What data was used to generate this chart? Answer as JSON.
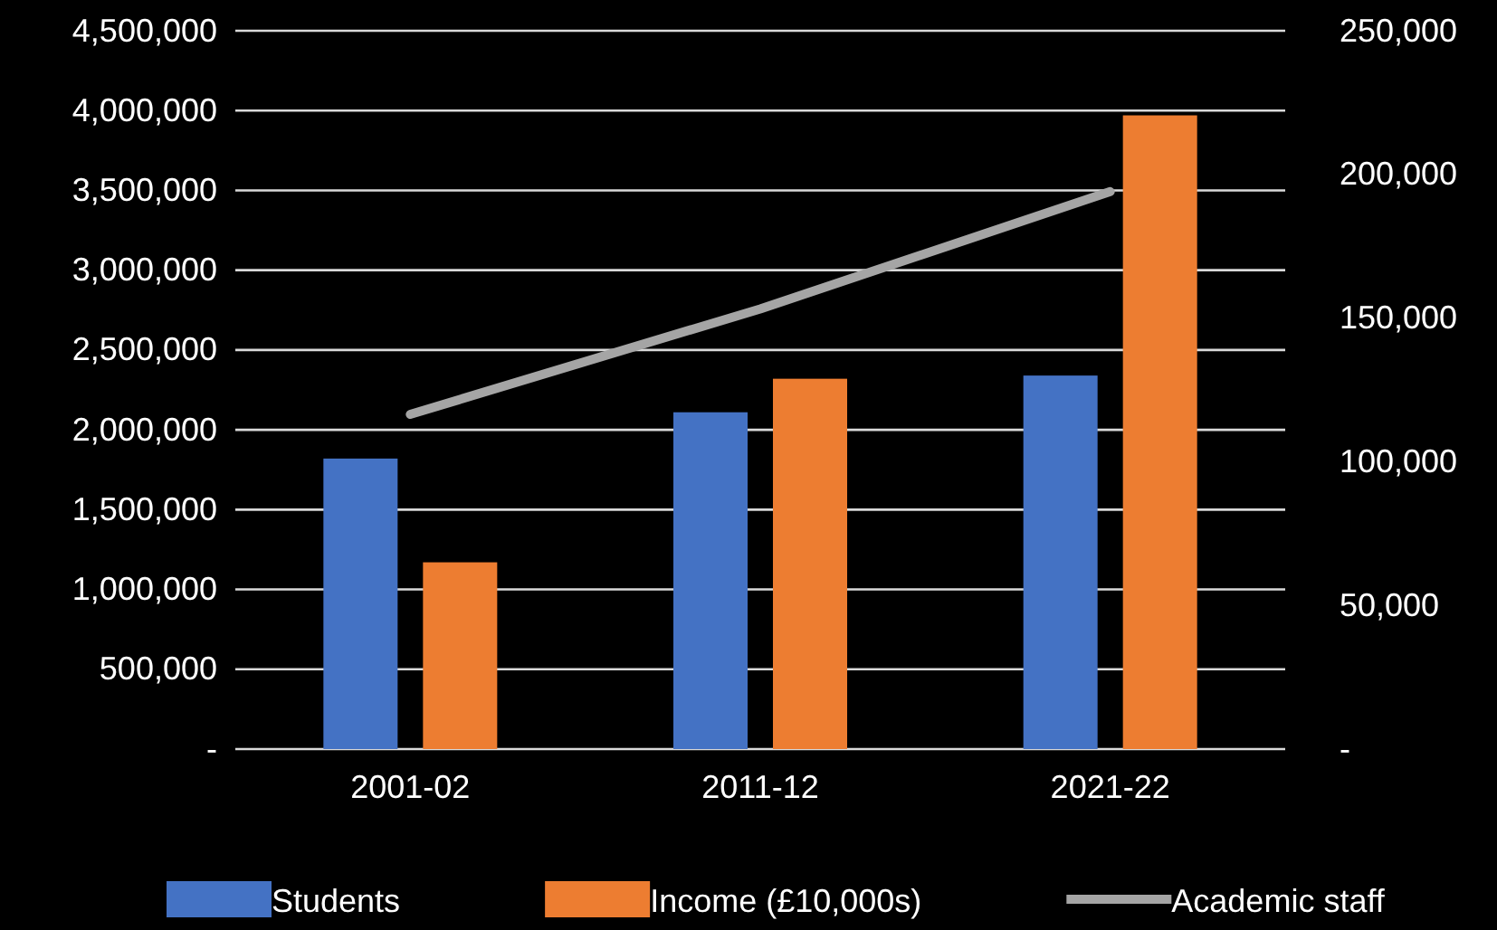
{
  "chart_data": {
    "type": "bar",
    "categories": [
      "2001-02",
      "2011-12",
      "2021-22"
    ],
    "series": [
      {
        "name": "Students",
        "color": "#4472c4",
        "values": [
          1820000,
          2110000,
          2340000
        ]
      },
      {
        "name": "Income (£10,000s)",
        "color": "#ed7d31",
        "values": [
          1170000,
          2320000,
          3970000
        ]
      },
      {
        "name": "Academic staff",
        "type": "line",
        "axis": "y2",
        "color": "#a5a5a5",
        "values": [
          116500,
          153200,
          194000
        ]
      }
    ],
    "ylim": [
      0,
      4500000
    ],
    "yticks": [
      {
        "value": 0,
        "label": "-"
      },
      {
        "value": 500000,
        "label": "500,000"
      },
      {
        "value": 1000000,
        "label": "1,000,000"
      },
      {
        "value": 1500000,
        "label": "1,500,000"
      },
      {
        "value": 2000000,
        "label": "2,000,000"
      },
      {
        "value": 2500000,
        "label": "2,500,000"
      },
      {
        "value": 3000000,
        "label": "3,000,000"
      },
      {
        "value": 3500000,
        "label": "3,500,000"
      },
      {
        "value": 4000000,
        "label": "4,000,000"
      },
      {
        "value": 4500000,
        "label": "4,500,000"
      }
    ],
    "y2lim": [
      0,
      250000
    ],
    "y2ticks": [
      {
        "value": 0,
        "label": "-"
      },
      {
        "value": 50000,
        "label": "50,000"
      },
      {
        "value": 100000,
        "label": "100,000"
      },
      {
        "value": 150000,
        "label": "150,000"
      },
      {
        "value": 200000,
        "label": "200,000"
      },
      {
        "value": 250000,
        "label": "250,000"
      }
    ],
    "grid": "y",
    "legend": "bottom",
    "marker": "none"
  }
}
